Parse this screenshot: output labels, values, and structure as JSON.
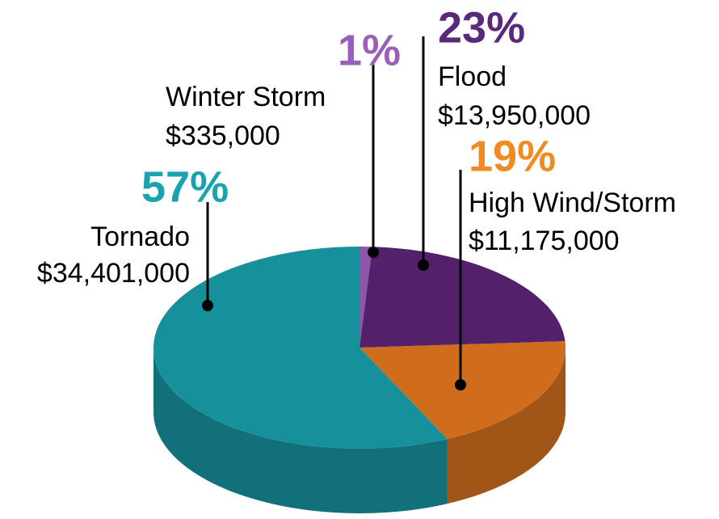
{
  "chart_data": {
    "type": "pie",
    "categories": [
      "Winter Storm",
      "Flood",
      "High Wind/Storm",
      "Tornado"
    ],
    "values": [
      1,
      23,
      19,
      57
    ],
    "value_labels": [
      "1%",
      "23%",
      "19%",
      "57%"
    ],
    "amount_labels": [
      "$335,000",
      "$13,950,000",
      "$11,175,000",
      "$34,401,000"
    ],
    "colors": [
      "#8f55ab",
      "#52216a",
      "#cf6d1c",
      "#16909b"
    ],
    "label_colors": [
      "#9a5fb6",
      "#5a2a7a",
      "#f28a22",
      "#1aa3ae"
    ]
  }
}
